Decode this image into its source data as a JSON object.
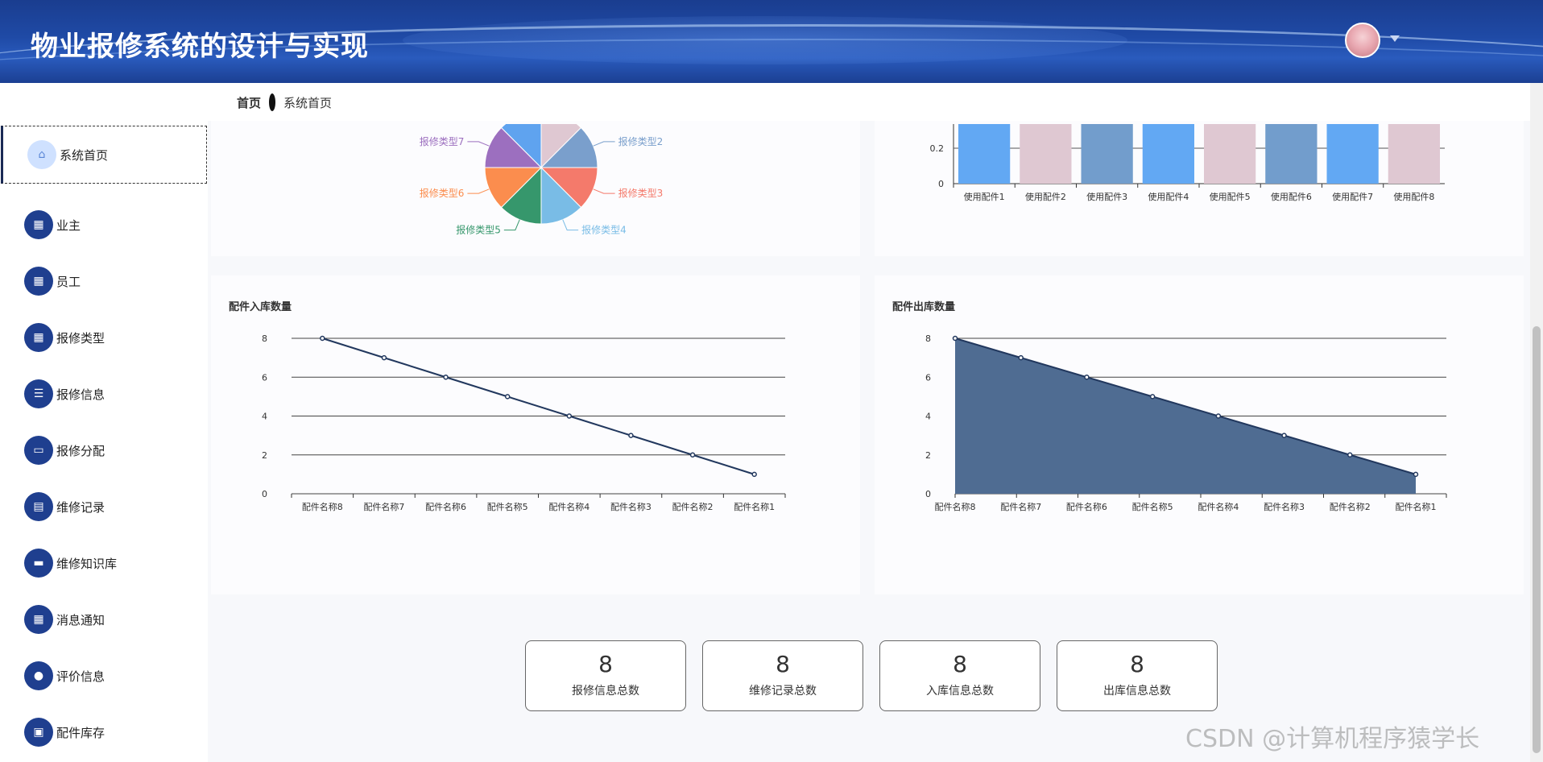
{
  "header": {
    "title": "物业报修系统的设计与实现"
  },
  "breadcrumb": {
    "home": "首页",
    "current": "系统首页"
  },
  "sidebar": {
    "items": [
      {
        "label": "系统首页",
        "icon": "home-icon"
      },
      {
        "label": "业主",
        "icon": "grid-icon"
      },
      {
        "label": "员工",
        "icon": "grid-icon"
      },
      {
        "label": "报修类型",
        "icon": "grid-icon"
      },
      {
        "label": "报修信息",
        "icon": "list-icon"
      },
      {
        "label": "报修分配",
        "icon": "tray-icon"
      },
      {
        "label": "维修记录",
        "icon": "clipboard-icon"
      },
      {
        "label": "维修知识库",
        "icon": "book-icon"
      },
      {
        "label": "消息通知",
        "icon": "grid-icon"
      },
      {
        "label": "评价信息",
        "icon": "bulb-icon"
      },
      {
        "label": "配件库存",
        "icon": "wallet-icon"
      }
    ]
  },
  "charts": {
    "line_title": "配件入库数量",
    "area_title": "配件出库数量"
  },
  "chart_data": [
    {
      "type": "pie",
      "labels": [
        "报修类型2",
        "报修类型3",
        "报修类型4",
        "报修类型5",
        "报修类型6",
        "报修类型7"
      ],
      "colors": [
        "#dfc8d2",
        "#7a9fcc",
        "#f47a6b",
        "#79bce6",
        "#36976c",
        "#fb8d4e",
        "#9c6fbf",
        "#5fa3ef"
      ]
    },
    {
      "type": "bar",
      "categories": [
        "使用配件1",
        "使用配件2",
        "使用配件3",
        "使用配件4",
        "使用配件5",
        "使用配件6",
        "使用配件7",
        "使用配件8"
      ],
      "y_ticks": [
        "0",
        "0.2"
      ],
      "colors": [
        "#62a8f3",
        "#dfc8d2",
        "#729dcc",
        "#62a8f3",
        "#dfc8d2",
        "#729dcc",
        "#62a8f3",
        "#dfc8d2"
      ]
    },
    {
      "type": "line",
      "title": "配件入库数量",
      "categories": [
        "配件名称8",
        "配件名称7",
        "配件名称6",
        "配件名称5",
        "配件名称4",
        "配件名称3",
        "配件名称2",
        "配件名称1"
      ],
      "values": [
        8,
        7,
        6,
        5,
        4,
        3,
        2,
        1
      ],
      "ylim": [
        0,
        8
      ],
      "y_ticks": [
        0,
        2,
        4,
        6,
        8
      ]
    },
    {
      "type": "area",
      "title": "配件出库数量",
      "categories": [
        "配件名称8",
        "配件名称7",
        "配件名称6",
        "配件名称5",
        "配件名称4",
        "配件名称3",
        "配件名称2",
        "配件名称1"
      ],
      "values": [
        8,
        7,
        6,
        5,
        4,
        3,
        2,
        1
      ],
      "ylim": [
        0,
        8
      ],
      "y_ticks": [
        0,
        2,
        4,
        6,
        8
      ]
    }
  ],
  "stats": [
    {
      "value": "8",
      "label": "报修信息总数"
    },
    {
      "value": "8",
      "label": "维修记录总数"
    },
    {
      "value": "8",
      "label": "入库信息总数"
    },
    {
      "value": "8",
      "label": "出库信息总数"
    }
  ],
  "watermark": "CSDN @计算机程序猿学长"
}
